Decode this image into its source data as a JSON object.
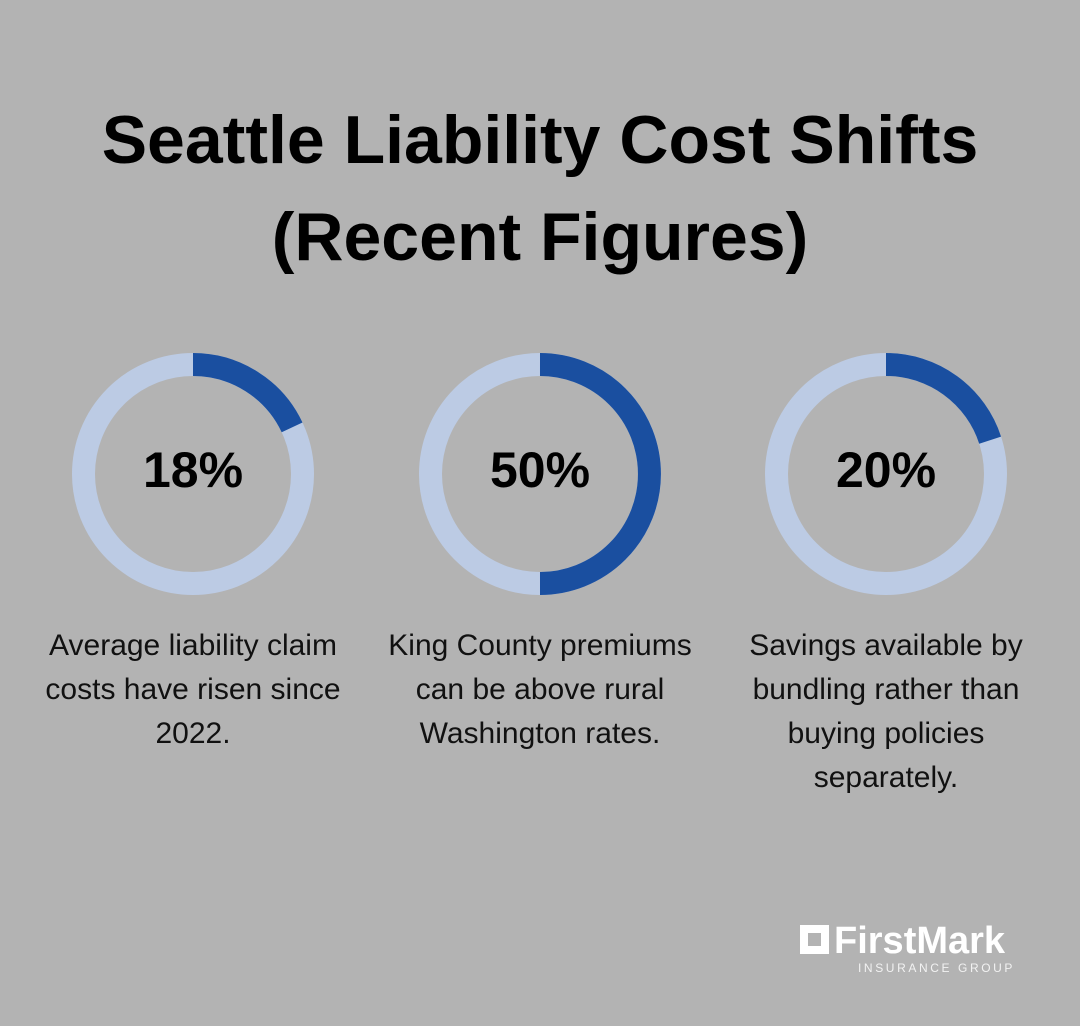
{
  "title": "Seattle Liability Cost Shifts (Recent Figures)",
  "chart_data": [
    {
      "type": "donut",
      "values": [
        18
      ],
      "value_labels": [
        "18%"
      ],
      "range": [
        0,
        100
      ],
      "color": "#1a4fa0",
      "track_color": "#bccbe4",
      "caption": "Average liability claim costs have risen since 2022."
    },
    {
      "type": "donut",
      "values": [
        50
      ],
      "value_labels": [
        "50%"
      ],
      "range": [
        0,
        100
      ],
      "color": "#1a4fa0",
      "track_color": "#bccbe4",
      "caption": "King County premiums can be above rural Washington rates."
    },
    {
      "type": "donut",
      "values": [
        20
      ],
      "value_labels": [
        "20%"
      ],
      "range": [
        0,
        100
      ],
      "color": "#1a4fa0",
      "track_color": "#bccbe4",
      "caption": "Savings available by bundling rather than buying policies separately."
    }
  ],
  "logo": {
    "name": "FirstMark",
    "tagline": "INSURANCE GROUP"
  }
}
